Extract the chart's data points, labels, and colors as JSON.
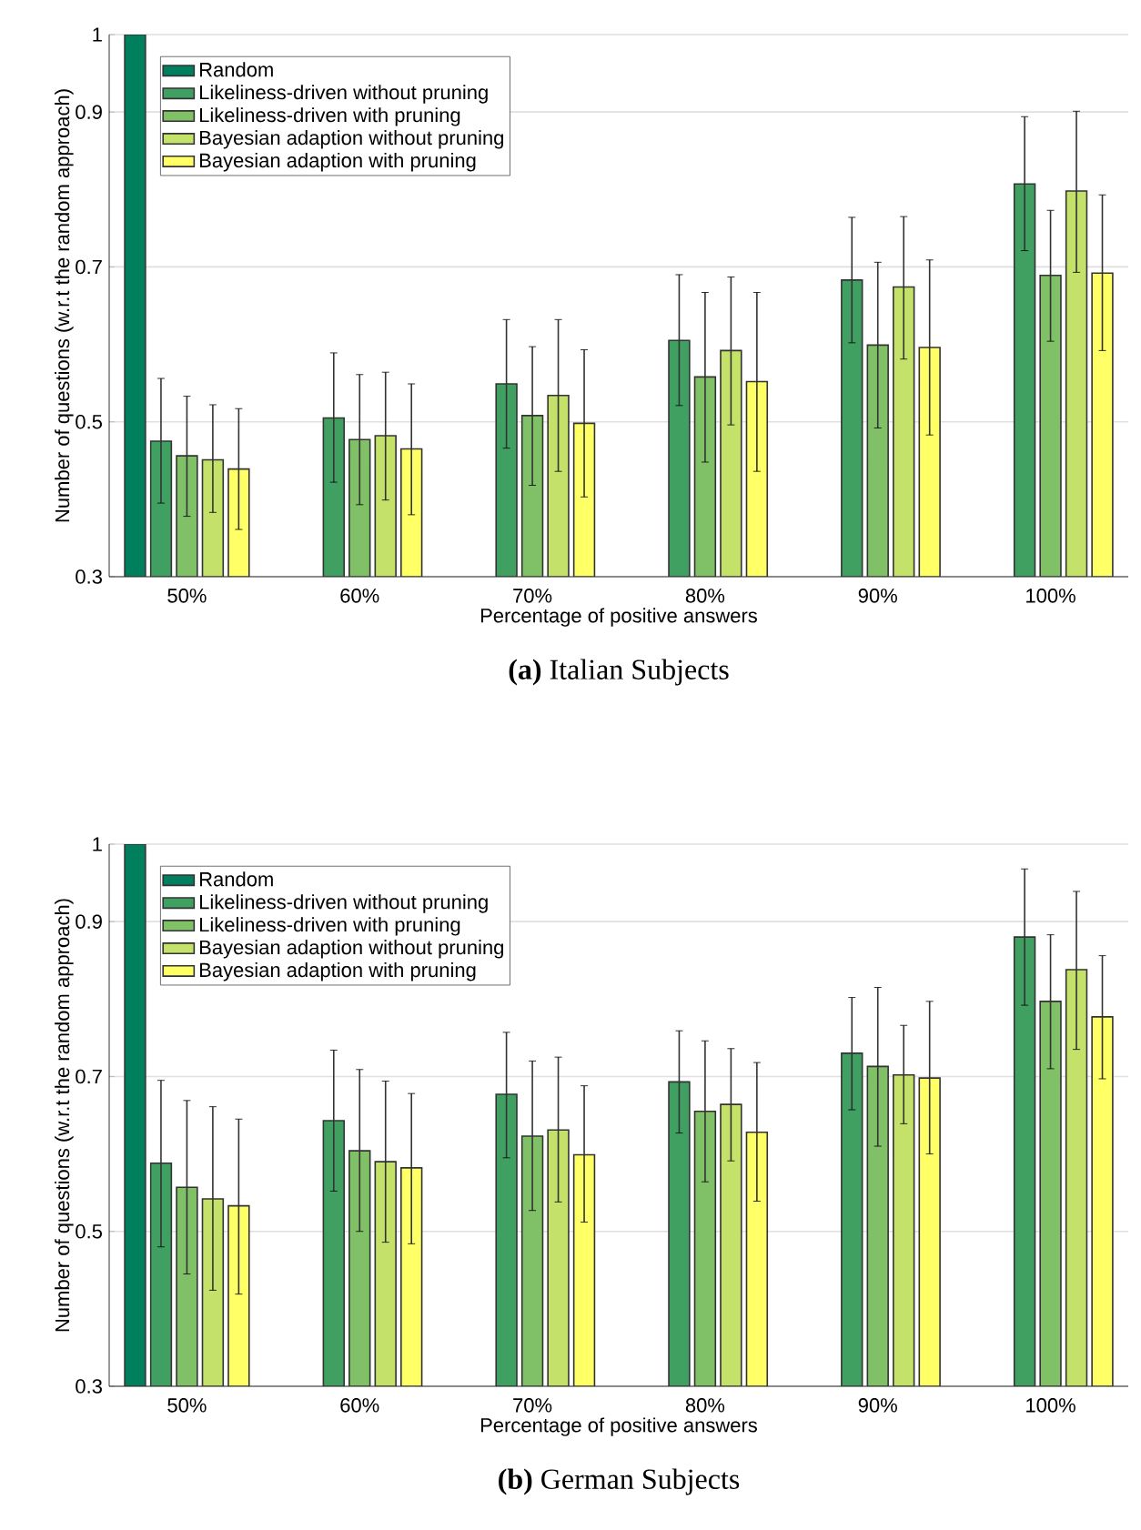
{
  "chart_data": [
    {
      "type": "bar",
      "title": "**(a)** Italian Subjects",
      "xlabel": "Percentage of positive answers",
      "ylabel": "Number of questions (w.r.t the random approach)",
      "categories": [
        "50%",
        "60%",
        "70%",
        "80%",
        "90%",
        "100%"
      ],
      "ylim": [
        0.3,
        1
      ],
      "yticks": [
        0.3,
        0.5,
        0.7,
        0.9,
        1
      ],
      "grid": "y",
      "legend": "top left",
      "series": [
        {
          "name": "Random",
          "color": "#007f5f",
          "values": [
            1,
            null,
            null,
            null,
            null,
            null
          ]
        },
        {
          "name": "Likeliness-driven without pruning",
          "color": "#40a062",
          "values": [
            0.475,
            0.505,
            0.549,
            0.605,
            0.683,
            0.807
          ],
          "errors": [
            [
              0.395,
              0.556
            ],
            [
              0.422,
              0.589
            ],
            [
              0.466,
              0.632
            ],
            [
              0.521,
              0.69
            ],
            [
              0.602,
              0.764
            ],
            [
              0.721,
              0.894
            ]
          ]
        },
        {
          "name": "Likeliness-driven with pruning",
          "color": "#80c066",
          "values": [
            0.456,
            0.477,
            0.508,
            0.558,
            0.599,
            0.689
          ],
          "errors": [
            [
              0.378,
              0.533
            ],
            [
              0.393,
              0.561
            ],
            [
              0.418,
              0.597
            ],
            [
              0.448,
              0.667
            ],
            [
              0.492,
              0.706
            ],
            [
              0.604,
              0.773
            ]
          ]
        },
        {
          "name": "Bayesian adaption without pruning",
          "color": "#c4e26a",
          "values": [
            0.451,
            0.482,
            0.534,
            0.592,
            0.674,
            0.798
          ],
          "errors": [
            [
              0.383,
              0.522
            ],
            [
              0.399,
              0.564
            ],
            [
              0.436,
              0.632
            ],
            [
              0.496,
              0.687
            ],
            [
              0.581,
              0.765
            ],
            [
              0.693,
              0.901
            ]
          ]
        },
        {
          "name": "Bayesian adaption with pruning",
          "color": "#ffff66",
          "values": [
            0.439,
            0.465,
            0.498,
            0.552,
            0.596,
            0.692
          ],
          "errors": [
            [
              0.361,
              0.517
            ],
            [
              0.38,
              0.549
            ],
            [
              0.403,
              0.593
            ],
            [
              0.436,
              0.667
            ],
            [
              0.483,
              0.709
            ],
            [
              0.592,
              0.793
            ]
          ]
        }
      ]
    },
    {
      "type": "bar",
      "title": "**(b)** German Subjects",
      "xlabel": "Percentage of positive answers",
      "ylabel": "Number of questions (w.r.t the random approach)",
      "categories": [
        "50%",
        "60%",
        "70%",
        "80%",
        "90%",
        "100%"
      ],
      "ylim": [
        0.3,
        1
      ],
      "yticks": [
        0.3,
        0.5,
        0.7,
        0.9,
        1
      ],
      "grid": "y",
      "legend": "top left",
      "series": [
        {
          "name": "Random",
          "color": "#007f5f",
          "values": [
            1,
            null,
            null,
            null,
            null,
            null
          ]
        },
        {
          "name": "Likeliness-driven without pruning",
          "color": "#40a062",
          "values": [
            0.588,
            0.643,
            0.677,
            0.693,
            0.73,
            0.88
          ],
          "errors": [
            [
              0.48,
              0.695
            ],
            [
              0.552,
              0.734
            ],
            [
              0.595,
              0.757
            ],
            [
              0.627,
              0.759
            ],
            [
              0.657,
              0.802
            ],
            [
              0.792,
              0.968
            ]
          ]
        },
        {
          "name": "Likeliness-driven with pruning",
          "color": "#80c066",
          "values": [
            0.557,
            0.604,
            0.623,
            0.655,
            0.713,
            0.797
          ],
          "errors": [
            [
              0.445,
              0.669
            ],
            [
              0.5,
              0.709
            ],
            [
              0.527,
              0.72
            ],
            [
              0.564,
              0.746
            ],
            [
              0.61,
              0.815
            ],
            [
              0.71,
              0.883
            ]
          ]
        },
        {
          "name": "Bayesian adaption without pruning",
          "color": "#c4e26a",
          "values": [
            0.542,
            0.59,
            0.631,
            0.664,
            0.702,
            0.838
          ],
          "errors": [
            [
              0.424,
              0.661
            ],
            [
              0.486,
              0.694
            ],
            [
              0.538,
              0.725
            ],
            [
              0.591,
              0.736
            ],
            [
              0.639,
              0.766
            ],
            [
              0.735,
              0.939
            ]
          ]
        },
        {
          "name": "Bayesian adaption with pruning",
          "color": "#ffff66",
          "values": [
            0.533,
            0.582,
            0.599,
            0.628,
            0.698,
            0.777
          ],
          "errors": [
            [
              0.419,
              0.645
            ],
            [
              0.484,
              0.678
            ],
            [
              0.512,
              0.688
            ],
            [
              0.539,
              0.718
            ],
            [
              0.6,
              0.797
            ],
            [
              0.697,
              0.856
            ]
          ]
        }
      ]
    }
  ]
}
